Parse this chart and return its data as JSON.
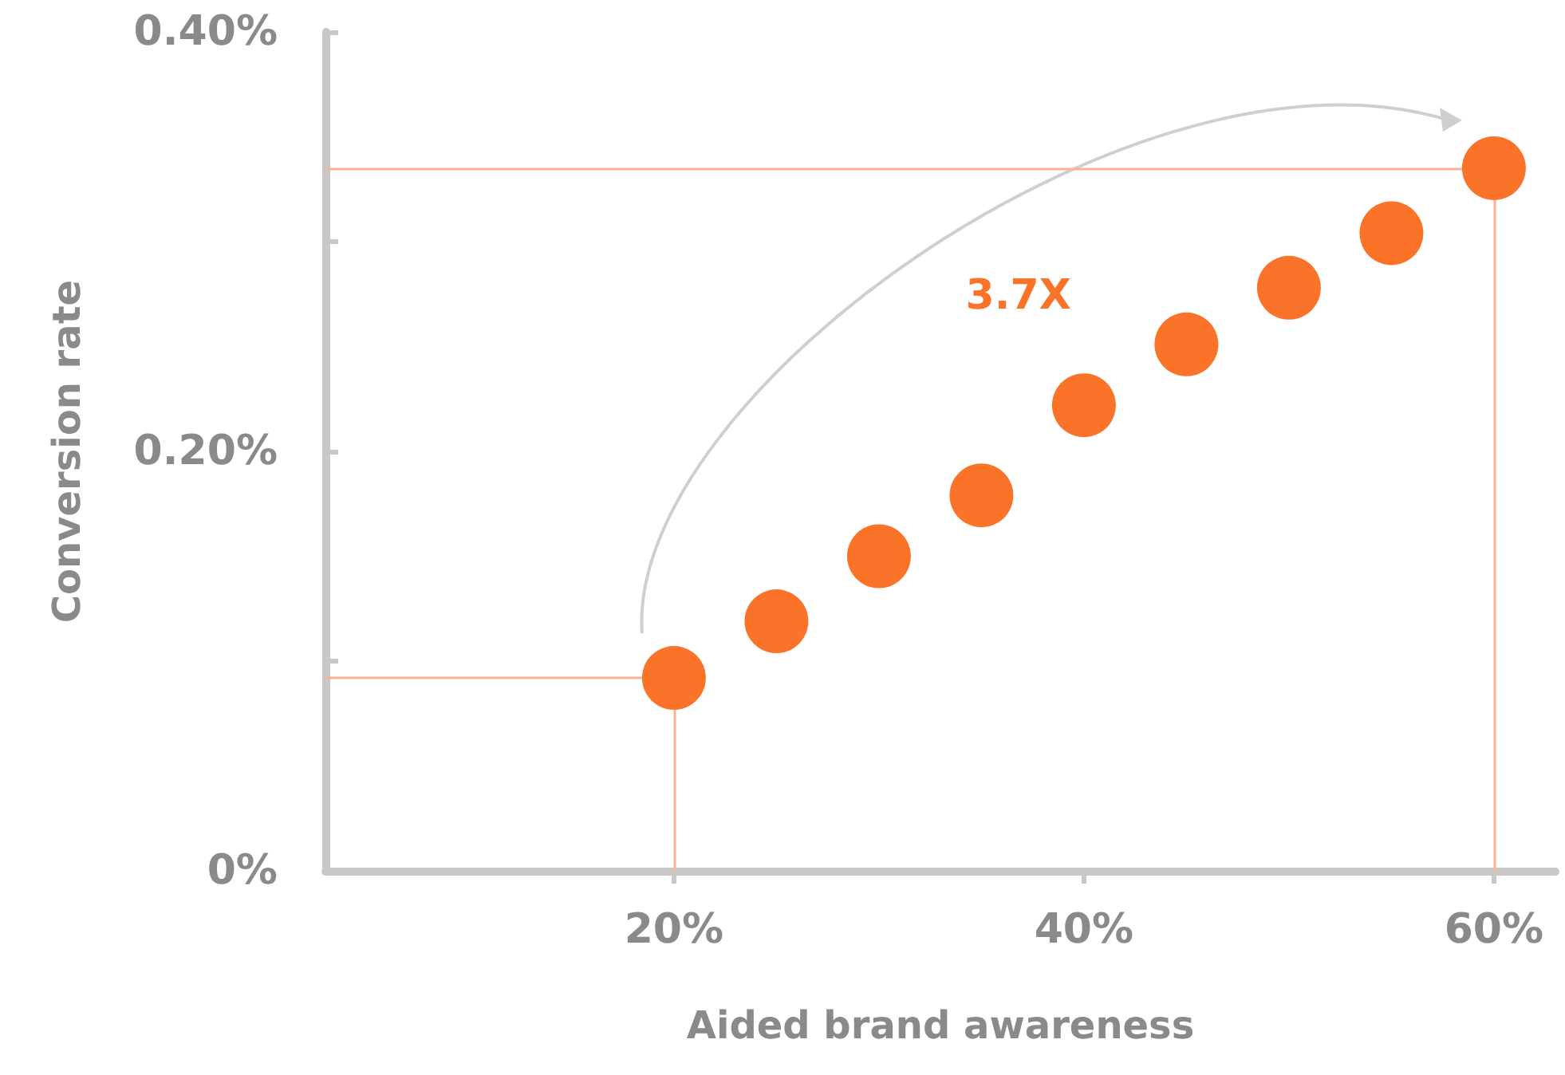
{
  "chart_data": {
    "type": "scatter",
    "xlabel": "Aided brand awareness",
    "ylabel": "Conversion rate",
    "x": [
      20,
      25,
      30,
      35,
      40,
      45,
      50,
      55,
      60
    ],
    "series": [
      {
        "color": "#fa7328",
        "values": [
          0.092,
          0.119,
          0.15,
          0.179,
          0.222,
          0.251,
          0.278,
          0.304,
          0.335
        ]
      }
    ],
    "xlim": [
      3,
      63
    ],
    "xticks": [
      {
        "value": 20,
        "label": "20%"
      },
      {
        "value": 40,
        "label": "40%"
      },
      {
        "value": 60,
        "label": "60%"
      }
    ],
    "ylim": [
      0,
      0.4
    ],
    "yticks": [
      {
        "value": 0,
        "label": "0%"
      },
      {
        "value": 0.1,
        "label": null
      },
      {
        "value": 0.2,
        "label": "0.20%"
      },
      {
        "value": 0.3,
        "label": null
      },
      {
        "value": 0.4,
        "label": "0.40%"
      }
    ],
    "ref_lines": [
      {
        "axis": "y",
        "value": 0.092,
        "color": "#f9b394"
      },
      {
        "axis": "x",
        "value": 20,
        "color": "#f9b394"
      },
      {
        "axis": "y",
        "value": 0.335,
        "color": "#f9b394"
      },
      {
        "axis": "x",
        "value": 60,
        "color": "#f9b394"
      }
    ],
    "annotations": [
      "3.7X"
    ],
    "marker": "circle"
  }
}
